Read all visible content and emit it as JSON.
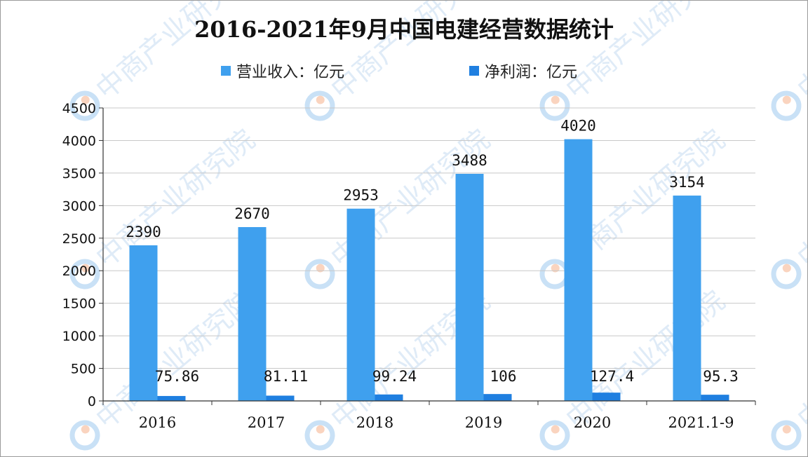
{
  "chart_data": {
    "type": "bar",
    "title": "2016-2021年9月中国电建经营数据统计",
    "categories": [
      "2016",
      "2017",
      "2018",
      "2019",
      "2020",
      "2021.1-9"
    ],
    "series": [
      {
        "name": "营业收入：亿元",
        "values": [
          2390,
          2670,
          2953,
          3488,
          4020,
          3154
        ],
        "labels": [
          "2390",
          "2670",
          "2953",
          "3488",
          "4020",
          "3154"
        ],
        "color": "#3fa0ee"
      },
      {
        "name": "净利润：亿元",
        "values": [
          75.86,
          81.11,
          99.24,
          106,
          127.4,
          95.3
        ],
        "labels": [
          "75.86",
          "81.11",
          "99.24",
          "106",
          "127.4",
          "95.3"
        ],
        "color": "#1f7fe0"
      }
    ],
    "ylim": [
      0,
      4500
    ],
    "yticks": [
      "0",
      "500",
      "1000",
      "1500",
      "2000",
      "2500",
      "3000",
      "3500",
      "4000",
      "4500"
    ],
    "grid": true,
    "legend_position": "top-center"
  },
  "watermark": {
    "text": "中商产业研究院",
    "icon": "zhongshang-logo-icon"
  }
}
